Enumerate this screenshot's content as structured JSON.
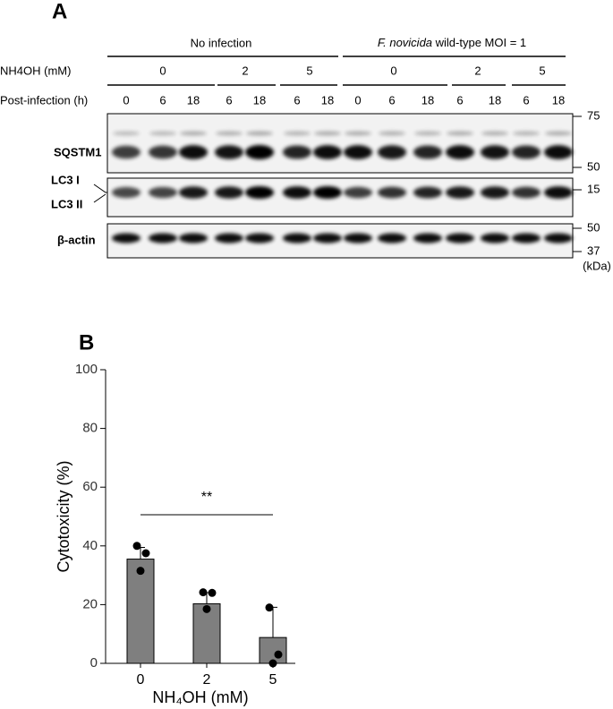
{
  "panel_a": {
    "label": "A",
    "group_labels": [
      {
        "plain": "No infection"
      },
      {
        "italic": "F. novicida",
        "plain": " wild-type MOI = 1"
      }
    ],
    "dose_title": "NH4OH (mM)",
    "doses": [
      "0",
      "2",
      "5",
      "0",
      "2",
      "5"
    ],
    "time_title": "Post-infection (h)",
    "times": [
      "0",
      "6",
      "18",
      "6",
      "18",
      "6",
      "18",
      "0",
      "6",
      "18",
      "6",
      "18",
      "6",
      "18"
    ],
    "blots": [
      "SQSTM1",
      "LC3 I",
      "LC3 II",
      "β-actin"
    ],
    "markers": [
      "75",
      "50",
      "15",
      "50",
      "37"
    ],
    "marker_unit": "(kDa)"
  },
  "panel_b_label": "B",
  "chart_data": {
    "type": "bar",
    "ylabel": "Cytotoxicity (%)",
    "xlabel": "NH₄OH (mM)",
    "categories": [
      "0",
      "2",
      "5"
    ],
    "values": [
      35.5,
      20.3,
      8.8
    ],
    "errors": [
      4,
      3.8,
      10.3
    ],
    "points": [
      [
        40,
        37.5,
        31.5
      ],
      [
        24.2,
        24,
        18.5
      ],
      [
        19,
        3,
        0
      ]
    ],
    "color": "#7f7f7f",
    "ylim": [
      0,
      100
    ],
    "yticks": [
      0,
      20,
      40,
      60,
      80,
      100
    ],
    "annotation": "**"
  }
}
